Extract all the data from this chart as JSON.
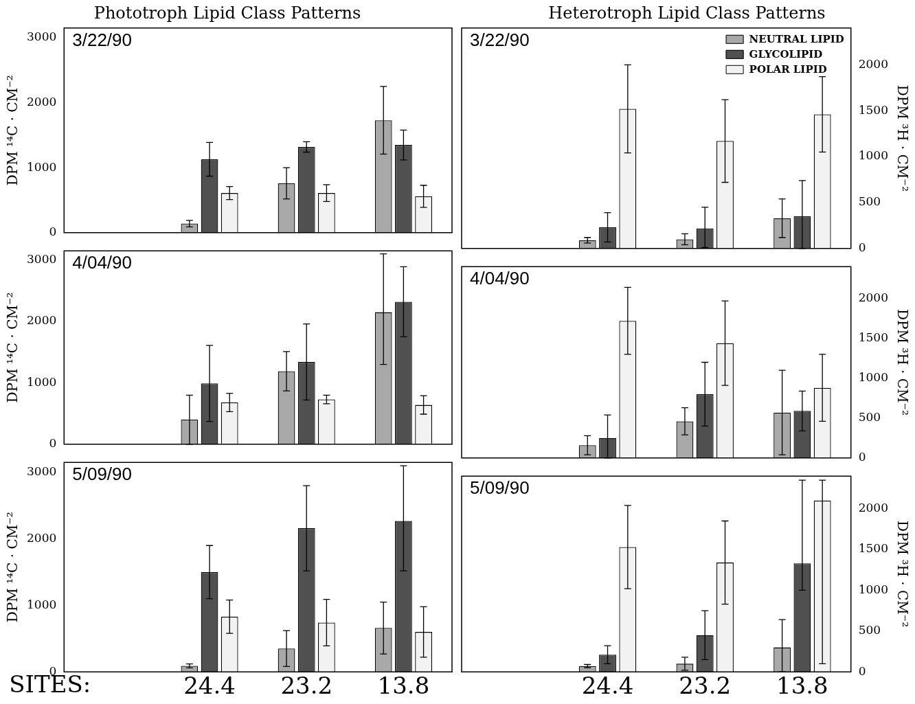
{
  "chart_data": [
    {
      "type": "bar",
      "title": "Phototroph Lipid Class Patterns",
      "ylabel": "DPM ¹⁴C · CM⁻²",
      "annotations": [
        "3/22/90"
      ],
      "categories": [
        null,
        "24.4",
        "23.2",
        "13.8"
      ],
      "ylim": [
        0,
        3150
      ],
      "yticks": [
        0,
        1000,
        2000,
        3000
      ],
      "tick_labels": "y",
      "grid": false,
      "legend": false,
      "series": [
        {
          "color": "#a8a8a8",
          "values": [
            null,
            140,
            760,
            1730
          ],
          "errors": [
            null,
            [
              90,
              190
            ],
            [
              520,
              1000
            ],
            [
              1210,
              2250
            ]
          ]
        },
        {
          "color": "#505050",
          "values": [
            null,
            1130,
            1320,
            1350
          ],
          "errors": [
            null,
            [
              870,
              1390
            ],
            [
              1240,
              1400
            ],
            [
              1120,
              1580
            ]
          ]
        },
        {
          "color": "#f2f2f2",
          "values": [
            null,
            610,
            610,
            560
          ],
          "errors": [
            null,
            [
              510,
              710
            ],
            [
              480,
              740
            ],
            [
              390,
              730
            ]
          ]
        }
      ]
    },
    {
      "type": "bar",
      "title": "Heterotroph Lipid Class Patterns",
      "y2label": "DPM ³H · CM⁻²",
      "annotations": [
        "3/22/90"
      ],
      "categories": [
        null,
        "24.4",
        "23.2",
        "13.8"
      ],
      "y2lim": [
        0,
        2400
      ],
      "y2ticks": [
        0,
        500,
        1000,
        1500,
        2000
      ],
      "tick_labels": "y",
      "grid": false,
      "legend": "top right",
      "series": [
        {
          "name": "NEUTRAL LIPID",
          "axis": "y2",
          "color": "#a8a8a8",
          "values": [
            null,
            90,
            100,
            330
          ],
          "errors": [
            null,
            [
              60,
              120
            ],
            [
              40,
              160
            ],
            [
              120,
              540
            ]
          ]
        },
        {
          "name": "GLYCOLIPID",
          "axis": "y2",
          "color": "#505050",
          "values": [
            null,
            230,
            220,
            350
          ],
          "errors": [
            null,
            [
              70,
              390
            ],
            [
              10,
              450
            ],
            [
              0,
              740
            ]
          ]
        },
        {
          "name": "POLAR LIPID",
          "axis": "y2",
          "color": "#f2f2f2",
          "values": [
            null,
            1520,
            1170,
            1460
          ],
          "errors": [
            null,
            [
              1040,
              2000
            ],
            [
              720,
              1620
            ],
            [
              1050,
              1870
            ]
          ]
        }
      ]
    },
    {
      "type": "bar",
      "ylabel": "DPM ¹⁴C · CM⁻²",
      "annotations": [
        "4/04/90"
      ],
      "categories": [
        null,
        "24.4",
        "23.2",
        "13.8"
      ],
      "ylim": [
        0,
        3150
      ],
      "yticks": [
        0,
        1000,
        2000,
        3000
      ],
      "tick_labels": "y",
      "grid": false,
      "legend": false,
      "series": [
        {
          "color": "#a8a8a8",
          "values": [
            null,
            400,
            1190,
            2150
          ],
          "errors": [
            null,
            [
              0,
              800
            ],
            [
              870,
              1510
            ],
            [
              1300,
              3100
            ]
          ]
        },
        {
          "color": "#505050",
          "values": [
            null,
            990,
            1340,
            2320
          ],
          "errors": [
            null,
            [
              370,
              1610
            ],
            [
              720,
              1960
            ],
            [
              1750,
              2890
            ]
          ]
        },
        {
          "color": "#f2f2f2",
          "values": [
            null,
            680,
            730,
            640
          ],
          "errors": [
            null,
            [
              530,
              830
            ],
            [
              660,
              800
            ],
            [
              490,
              790
            ]
          ]
        }
      ]
    },
    {
      "type": "bar",
      "y2label": "DPM ³H · CM⁻²",
      "annotations": [
        "4/04/90"
      ],
      "categories": [
        null,
        "24.4",
        "23.2",
        "13.8"
      ],
      "y2lim": [
        0,
        2400
      ],
      "y2ticks": [
        0,
        500,
        1000,
        1500,
        2000
      ],
      "tick_labels": "y",
      "grid": false,
      "legend": false,
      "series": [
        {
          "axis": "y2",
          "color": "#a8a8a8",
          "values": [
            null,
            160,
            460,
            570
          ],
          "errors": [
            null,
            [
              40,
              280
            ],
            [
              290,
              630
            ],
            [
              40,
              1100
            ]
          ]
        },
        {
          "axis": "y2",
          "color": "#505050",
          "values": [
            null,
            250,
            800,
            590
          ],
          "errors": [
            null,
            [
              0,
              540
            ],
            [
              400,
              1200
            ],
            [
              340,
              840
            ]
          ]
        },
        {
          "axis": "y2",
          "color": "#f2f2f2",
          "values": [
            null,
            1720,
            1440,
            880
          ],
          "errors": [
            null,
            [
              1300,
              2140
            ],
            [
              910,
              1970
            ],
            [
              460,
              1300
            ]
          ]
        }
      ]
    },
    {
      "type": "bar",
      "xlabel": "SITES:",
      "ylabel": "DPM ¹⁴C · CM⁻²",
      "annotations": [
        "5/09/90"
      ],
      "categories": [
        null,
        "24.4",
        "23.2",
        "13.8"
      ],
      "ylim": [
        0,
        3150
      ],
      "yticks": [
        0,
        1000,
        2000,
        3000
      ],
      "grid": false,
      "legend": false,
      "series": [
        {
          "color": "#a8a8a8",
          "values": [
            null,
            90,
            350,
            660
          ],
          "errors": [
            null,
            [
              60,
              120
            ],
            [
              80,
              620
            ],
            [
              270,
              1050
            ]
          ]
        },
        {
          "color": "#505050",
          "values": [
            null,
            1500,
            2160,
            2270
          ],
          "errors": [
            null,
            [
              1100,
              1900
            ],
            [
              1520,
              2800
            ],
            [
              1520,
              3100
            ]
          ]
        },
        {
          "color": "#f2f2f2",
          "values": [
            null,
            830,
            740,
            600
          ],
          "errors": [
            null,
            [
              580,
              1080
            ],
            [
              390,
              1090
            ],
            [
              220,
              980
            ]
          ]
        }
      ]
    },
    {
      "type": "bar",
      "y2label": "DPM ³H · CM⁻²",
      "annotations": [
        "5/09/90"
      ],
      "categories": [
        null,
        "24.4",
        "23.2",
        "13.8"
      ],
      "y2lim": [
        0,
        2400
      ],
      "y2ticks": [
        0,
        500,
        1000,
        1500,
        2000
      ],
      "grid": false,
      "legend": false,
      "series": [
        {
          "axis": "y2",
          "color": "#a8a8a8",
          "values": [
            null,
            70,
            100,
            300
          ],
          "errors": [
            null,
            [
              50,
              90
            ],
            [
              20,
              180
            ],
            [
              0,
              640
            ]
          ]
        },
        {
          "axis": "y2",
          "color": "#505050",
          "values": [
            null,
            210,
            450,
            1330
          ],
          "errors": [
            null,
            [
              100,
              320
            ],
            [
              150,
              750
            ],
            [
              1000,
              2350
            ]
          ]
        },
        {
          "axis": "y2",
          "color": "#f2f2f2",
          "values": [
            null,
            1530,
            1340,
            2100
          ],
          "errors": [
            null,
            [
              1020,
              2040
            ],
            [
              830,
              1850
            ],
            [
              100,
              2350
            ]
          ]
        }
      ]
    }
  ]
}
